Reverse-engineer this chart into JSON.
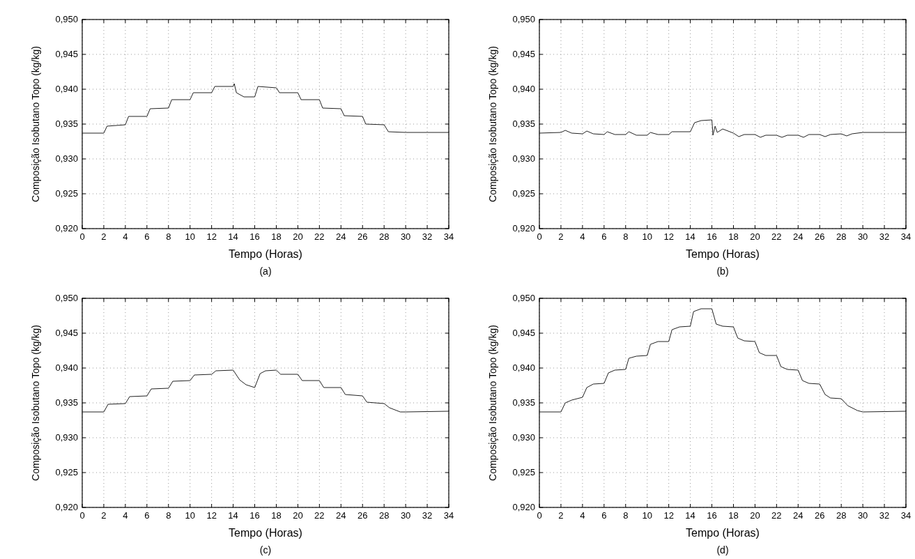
{
  "chart_data": [
    {
      "type": "line",
      "xlabel": "Tempo (Horas)",
      "ylabel": "Composição Isobutano Topo (kg/kg)",
      "annotations": [
        "(a)"
      ],
      "grid": true,
      "line_style": "solid",
      "xlim": [
        0,
        34
      ],
      "xticks": [
        0,
        2,
        4,
        6,
        8,
        10,
        12,
        14,
        16,
        18,
        20,
        22,
        24,
        26,
        28,
        30,
        32,
        34
      ],
      "ylim": [
        0.92,
        0.95
      ],
      "yticks": [
        {
          "value": 0.92,
          "label": "0,920"
        },
        {
          "value": 0.925,
          "label": "0,925"
        },
        {
          "value": 0.93,
          "label": "0,930"
        },
        {
          "value": 0.935,
          "label": "0,935"
        },
        {
          "value": 0.94,
          "label": "0,940"
        },
        {
          "value": 0.945,
          "label": "0,945"
        },
        {
          "value": 0.95,
          "label": "0,950"
        }
      ],
      "series": [
        {
          "color": "#222222",
          "x": [
            0,
            2,
            2.3,
            4,
            4.3,
            6,
            6.3,
            8,
            8.3,
            10,
            10.3,
            12,
            12.3,
            14,
            14.1,
            14.3,
            15,
            16,
            16.3,
            18,
            18.3,
            20,
            20.3,
            22,
            22.3,
            24,
            24.3,
            26,
            26.3,
            28,
            28.4,
            30,
            34
          ],
          "values": [
            0.9337,
            0.9337,
            0.9347,
            0.9349,
            0.9361,
            0.9361,
            0.9372,
            0.9373,
            0.9385,
            0.9385,
            0.9395,
            0.9395,
            0.9404,
            0.9404,
            0.9408,
            0.9395,
            0.9389,
            0.9389,
            0.9404,
            0.9402,
            0.9395,
            0.9395,
            0.9385,
            0.9385,
            0.9373,
            0.9372,
            0.9362,
            0.9361,
            0.935,
            0.9349,
            0.9339,
            0.9338,
            0.9338
          ]
        }
      ]
    },
    {
      "type": "line",
      "xlabel": "Tempo (Horas)",
      "ylabel": "Composição Isobutano Topo (kg/kg)",
      "annotations": [
        "(b)"
      ],
      "grid": true,
      "line_style": "solid",
      "xlim": [
        0,
        34
      ],
      "xticks": [
        0,
        2,
        4,
        6,
        8,
        10,
        12,
        14,
        16,
        18,
        20,
        22,
        24,
        26,
        28,
        30,
        32,
        34
      ],
      "ylim": [
        0.92,
        0.95
      ],
      "yticks": [
        {
          "value": 0.92,
          "label": "0,920"
        },
        {
          "value": 0.925,
          "label": "0,925"
        },
        {
          "value": 0.93,
          "label": "0,930"
        },
        {
          "value": 0.935,
          "label": "0,935"
        },
        {
          "value": 0.94,
          "label": "0,940"
        },
        {
          "value": 0.945,
          "label": "0,945"
        },
        {
          "value": 0.95,
          "label": "0,950"
        }
      ],
      "series": [
        {
          "color": "#222222",
          "x": [
            0,
            2,
            2.4,
            3,
            4,
            4.4,
            5,
            6,
            6.3,
            7,
            8,
            8.3,
            9,
            10,
            10.3,
            11,
            12,
            12.3,
            14,
            14.4,
            15,
            16,
            16.1,
            16.3,
            16.5,
            17,
            18,
            18.5,
            19,
            20,
            20.5,
            21,
            22,
            22.5,
            23,
            24,
            24.5,
            25,
            26,
            26.5,
            27,
            28,
            28.5,
            29,
            30,
            34
          ],
          "values": [
            0.9337,
            0.9338,
            0.9341,
            0.9337,
            0.9336,
            0.934,
            0.9336,
            0.9335,
            0.9339,
            0.9335,
            0.9335,
            0.9339,
            0.9334,
            0.9334,
            0.9338,
            0.9335,
            0.9335,
            0.9339,
            0.9339,
            0.9352,
            0.9355,
            0.9356,
            0.9334,
            0.9347,
            0.9338,
            0.9343,
            0.9337,
            0.9332,
            0.9335,
            0.9335,
            0.9331,
            0.9334,
            0.9334,
            0.9331,
            0.9334,
            0.9334,
            0.9331,
            0.9335,
            0.9335,
            0.9332,
            0.9335,
            0.9336,
            0.9333,
            0.9336,
            0.9338,
            0.9338
          ]
        }
      ]
    },
    {
      "type": "line",
      "xlabel": "Tempo (Horas)",
      "ylabel": "Composição Isobutano Topo (kg/kg)",
      "annotations": [
        "(c)"
      ],
      "grid": true,
      "line_style": "solid",
      "xlim": [
        0,
        34
      ],
      "xticks": [
        0,
        2,
        4,
        6,
        8,
        10,
        12,
        14,
        16,
        18,
        20,
        22,
        24,
        26,
        28,
        30,
        32,
        34
      ],
      "ylim": [
        0.92,
        0.95
      ],
      "yticks": [
        {
          "value": 0.92,
          "label": "0,920"
        },
        {
          "value": 0.925,
          "label": "0,925"
        },
        {
          "value": 0.93,
          "label": "0,930"
        },
        {
          "value": 0.935,
          "label": "0,935"
        },
        {
          "value": 0.94,
          "label": "0,940"
        },
        {
          "value": 0.945,
          "label": "0,945"
        },
        {
          "value": 0.95,
          "label": "0,950"
        }
      ],
      "series": [
        {
          "color": "#222222",
          "x": [
            0,
            2,
            2.4,
            4,
            4.4,
            6,
            6.4,
            8,
            8.4,
            10,
            10.4,
            12,
            12.4,
            14,
            14.6,
            15.2,
            16,
            16.5,
            17,
            18,
            18.4,
            20,
            20.4,
            22,
            22.4,
            24,
            24.4,
            26,
            26.4,
            28,
            28.5,
            29.5,
            30,
            34
          ],
          "values": [
            0.9337,
            0.9337,
            0.9348,
            0.9349,
            0.9359,
            0.936,
            0.937,
            0.9371,
            0.9381,
            0.9382,
            0.939,
            0.9391,
            0.9396,
            0.9397,
            0.9383,
            0.9376,
            0.9372,
            0.9392,
            0.9396,
            0.9397,
            0.9391,
            0.9391,
            0.9382,
            0.9382,
            0.9372,
            0.9372,
            0.9362,
            0.936,
            0.9351,
            0.9349,
            0.9343,
            0.9337,
            0.9337,
            0.9338
          ]
        }
      ]
    },
    {
      "type": "line",
      "xlabel": "Tempo (Horas)",
      "ylabel": "Composição Isobutano Topo (kg/kg)",
      "annotations": [
        "(d)"
      ],
      "grid": true,
      "line_style": "solid",
      "xlim": [
        0,
        34
      ],
      "xticks": [
        0,
        2,
        4,
        6,
        8,
        10,
        12,
        14,
        16,
        18,
        20,
        22,
        24,
        26,
        28,
        30,
        32,
        34
      ],
      "ylim": [
        0.92,
        0.95
      ],
      "yticks": [
        {
          "value": 0.92,
          "label": "0,920"
        },
        {
          "value": 0.925,
          "label": "0,925"
        },
        {
          "value": 0.93,
          "label": "0,930"
        },
        {
          "value": 0.935,
          "label": "0,935"
        },
        {
          "value": 0.94,
          "label": "0,940"
        },
        {
          "value": 0.945,
          "label": "0,945"
        },
        {
          "value": 0.95,
          "label": "0,950"
        }
      ],
      "series": [
        {
          "color": "#222222",
          "x": [
            0,
            2,
            2.4,
            3,
            4,
            4.4,
            5,
            6,
            6.4,
            7,
            8,
            8.3,
            9,
            10,
            10.3,
            11,
            12,
            12.3,
            13,
            14,
            14.3,
            15,
            16,
            16.4,
            17,
            18,
            18.4,
            19,
            20,
            20.4,
            21,
            22,
            22.4,
            23,
            24,
            24.4,
            25,
            26,
            26.5,
            27,
            28,
            28.6,
            29.5,
            30,
            34
          ],
          "values": [
            0.9337,
            0.9337,
            0.935,
            0.9354,
            0.9358,
            0.9372,
            0.9377,
            0.9378,
            0.9393,
            0.9397,
            0.9398,
            0.9414,
            0.9417,
            0.9418,
            0.9434,
            0.9438,
            0.9438,
            0.9455,
            0.9459,
            0.946,
            0.9481,
            0.9485,
            0.9485,
            0.9463,
            0.946,
            0.9459,
            0.9443,
            0.9439,
            0.9438,
            0.9422,
            0.9418,
            0.9418,
            0.9402,
            0.9398,
            0.9397,
            0.9382,
            0.9378,
            0.9377,
            0.9362,
            0.9357,
            0.9356,
            0.9346,
            0.9339,
            0.9337,
            0.9338
          ]
        }
      ]
    }
  ]
}
